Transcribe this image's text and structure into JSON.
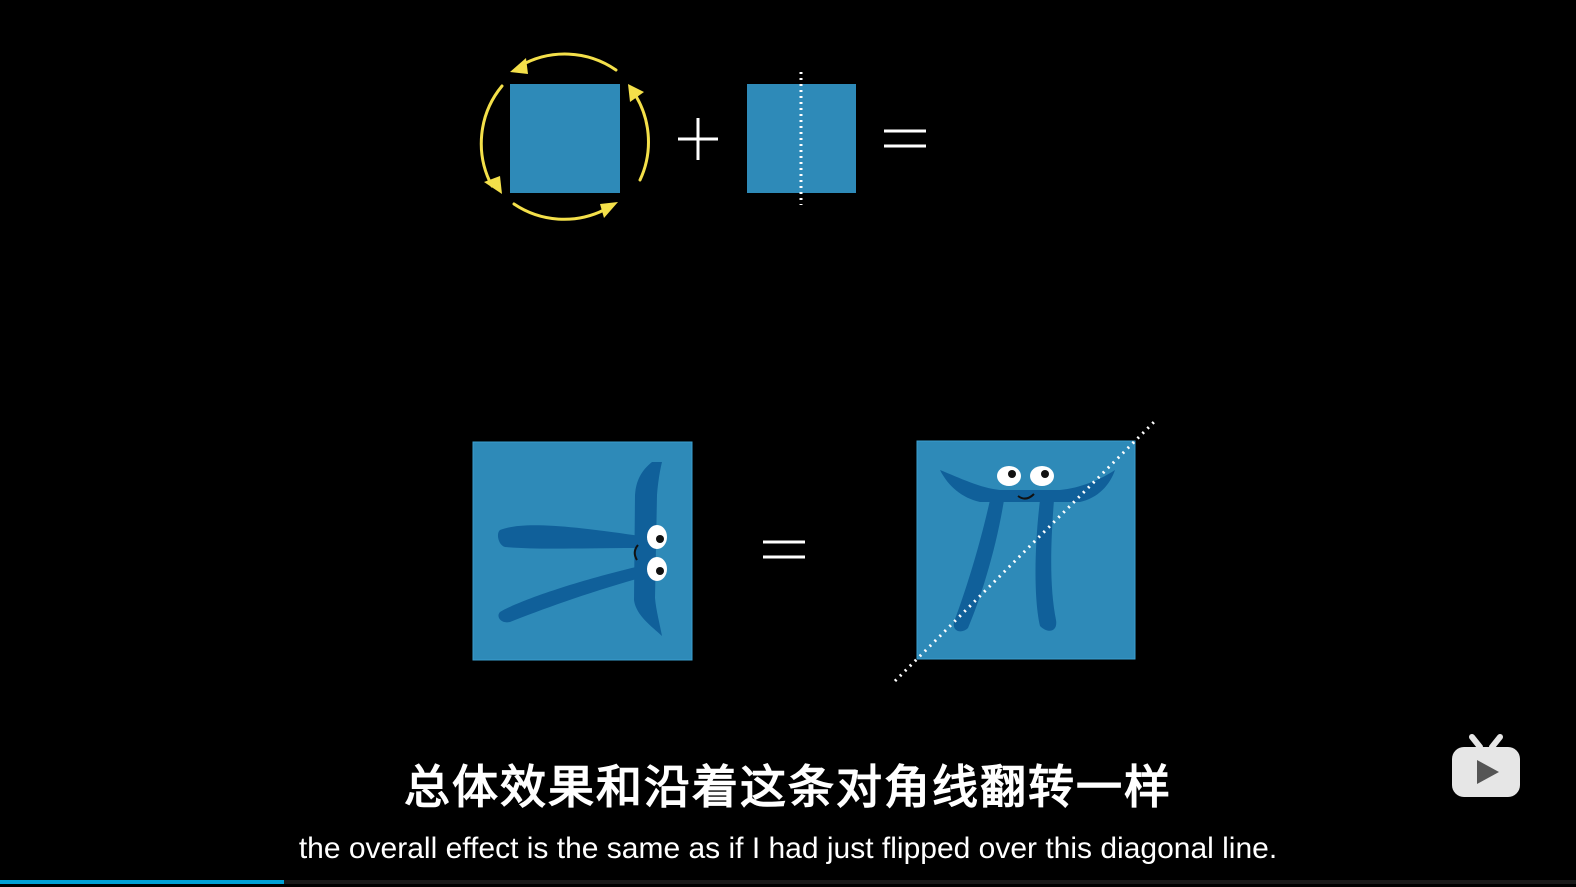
{
  "subtitle": {
    "chinese": "总体效果和沿着这条对角线翻转一样",
    "english": "the overall effect is the same as if I had just flipped over this diagonal line."
  },
  "equation_top": {
    "operator_plus": "+",
    "operator_equals": "="
  },
  "equation_bottom": {
    "operator_equals": "="
  },
  "colors": {
    "background": "#000000",
    "square_fill": "#2e8ab8",
    "square_stroke": "#3a9fd0",
    "pi_character": "#10609a",
    "rotation_arrows": "#f4e04a",
    "dotted_line": "#ffffff",
    "progress_accent": "#00a1d6"
  },
  "icons": {
    "watermark": "bilibili-tv-icon",
    "rotation": "rotate-arrows-icon"
  },
  "progress": {
    "fraction": 0.18
  }
}
